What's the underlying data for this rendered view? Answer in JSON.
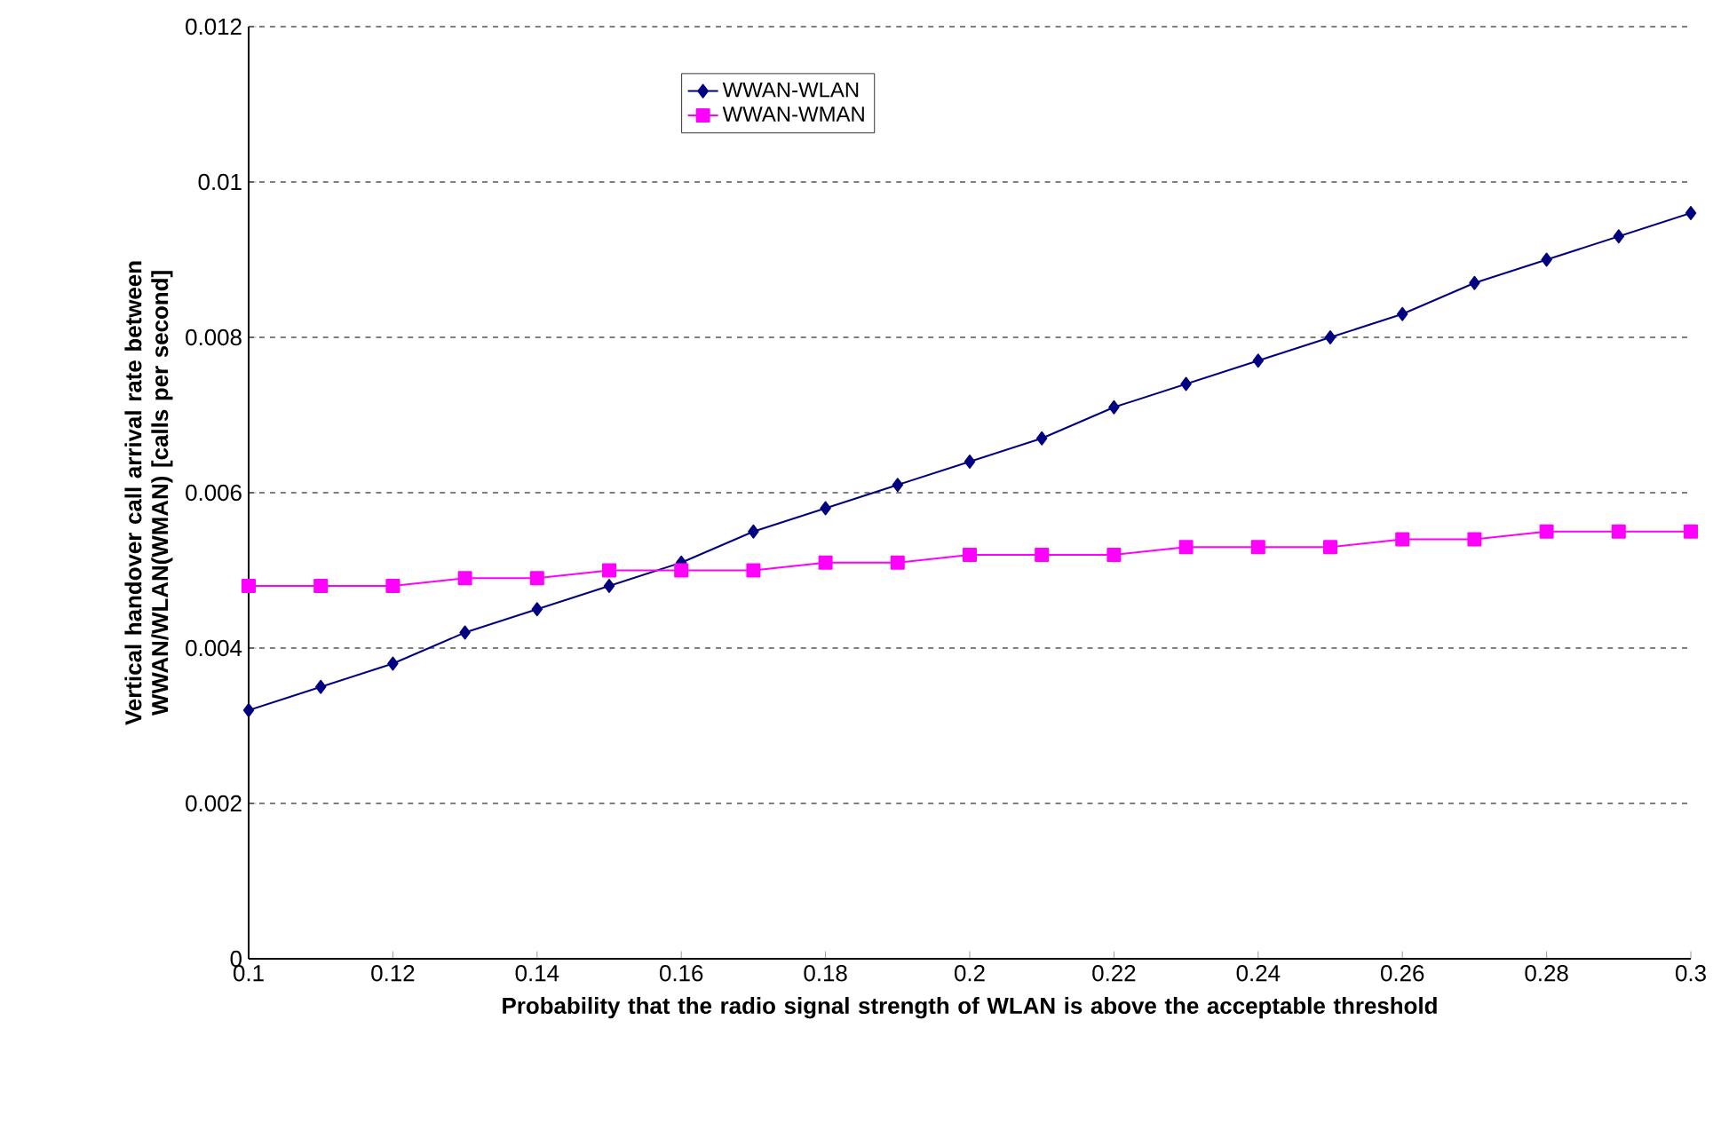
{
  "chart_data": {
    "type": "line",
    "xlabel": "Probability that the radio signal strength of WLAN is above the acceptable threshold",
    "ylabel": "Vertical handover call arrival rate between WWAN/WLAN(WMAN) [calls per second]",
    "x": [
      0.1,
      0.11,
      0.12,
      0.13,
      0.14,
      0.15,
      0.16,
      0.17,
      0.18,
      0.19,
      0.2,
      0.21,
      0.22,
      0.23,
      0.24,
      0.25,
      0.26,
      0.27,
      0.28,
      0.29,
      0.3
    ],
    "series": [
      {
        "name": "WWAN-WLAN",
        "color": "#000080",
        "marker": "diamond",
        "values": [
          0.0032,
          0.0035,
          0.0038,
          0.0042,
          0.0045,
          0.0048,
          0.0051,
          0.0055,
          0.0058,
          0.0061,
          0.0064,
          0.0067,
          0.0071,
          0.0074,
          0.0077,
          0.008,
          0.0083,
          0.0087,
          0.009,
          0.0093,
          0.0096
        ]
      },
      {
        "name": "WWAN-WMAN",
        "color": "#ff00ff",
        "marker": "square",
        "values": [
          0.0048,
          0.0048,
          0.0048,
          0.0049,
          0.0049,
          0.005,
          0.005,
          0.005,
          0.0051,
          0.0051,
          0.0052,
          0.0052,
          0.0052,
          0.0053,
          0.0053,
          0.0053,
          0.0054,
          0.0054,
          0.0055,
          0.0055,
          0.0055
        ]
      }
    ],
    "xlim": [
      0.1,
      0.3
    ],
    "xticks": [
      0.1,
      0.12,
      0.14,
      0.16,
      0.18,
      0.2,
      0.22,
      0.24,
      0.26,
      0.28,
      0.3
    ],
    "ylim": [
      0,
      0.012
    ],
    "yticks": [
      0,
      0.002,
      0.004,
      0.006,
      0.008,
      0.01,
      0.012
    ],
    "grid": "y",
    "legend": "top"
  }
}
